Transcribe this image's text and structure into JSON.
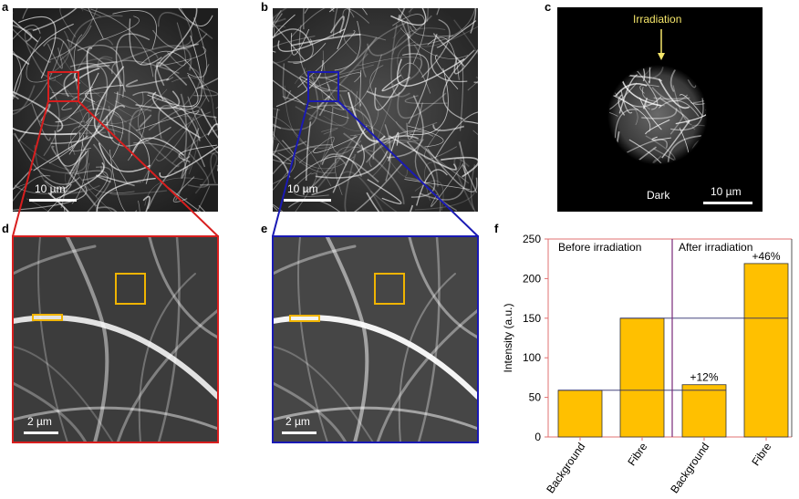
{
  "panels": {
    "a": {
      "letter": "a",
      "scale_label": "10 µm"
    },
    "b": {
      "letter": "b",
      "scale_label": "10 µm"
    },
    "c": {
      "letter": "c",
      "scale_label": "10 µm",
      "irradiation_label": "Irradiation",
      "dark_label": "Dark"
    },
    "d": {
      "letter": "d",
      "scale_label": "2 µm"
    },
    "e": {
      "letter": "e",
      "scale_label": "2 µm"
    },
    "f": {
      "letter": "f"
    }
  },
  "colors": {
    "red_box": "#d81e1e",
    "blue_box": "#1a1ab4",
    "roi_yellow": "#f0b400",
    "bar_fill": "#ffc000",
    "annotation_yellow": "#f5e66a"
  },
  "chart_data": {
    "type": "bar",
    "categories": [
      "Background",
      "Fibre",
      "Background",
      "Fibre"
    ],
    "values": [
      59,
      150,
      66,
      219
    ],
    "ylabel": "Intensity (a.u.)",
    "ylim": [
      0,
      250
    ],
    "yticks": [
      0,
      50,
      100,
      150,
      200,
      250
    ],
    "groups": [
      {
        "label": "Before irradiation",
        "indices": [
          0,
          1
        ]
      },
      {
        "label": "After irradiation",
        "indices": [
          2,
          3
        ]
      }
    ],
    "annotations": [
      {
        "index": 2,
        "text": "+12%"
      },
      {
        "index": 3,
        "text": "+46%"
      }
    ]
  }
}
